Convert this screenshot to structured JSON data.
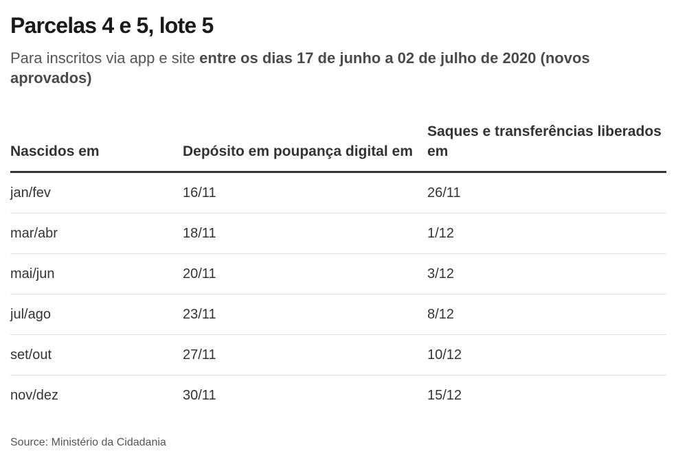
{
  "title": "Parcelas 4 e 5, lote 5",
  "subtitle": {
    "normal": "Para inscritos via app e site ",
    "bold": "entre os dias 17 de junho a 02 de julho de 2020 (novos aprovados)"
  },
  "table": {
    "headers": [
      "Nascidos em",
      "Depósito em poupança digital em",
      "Saques e transferências liberados em"
    ],
    "rows": [
      [
        "jan/fev",
        "16/11",
        "26/11"
      ],
      [
        "mar/abr",
        "18/11",
        "1/12"
      ],
      [
        "mai/jun",
        "20/11",
        "3/12"
      ],
      [
        "jul/ago",
        "23/11",
        "8/12"
      ],
      [
        "set/out",
        "27/11",
        "10/12"
      ],
      [
        "nov/dez",
        "30/11",
        "15/12"
      ]
    ]
  },
  "source": "Source: Ministério da Cidadania"
}
